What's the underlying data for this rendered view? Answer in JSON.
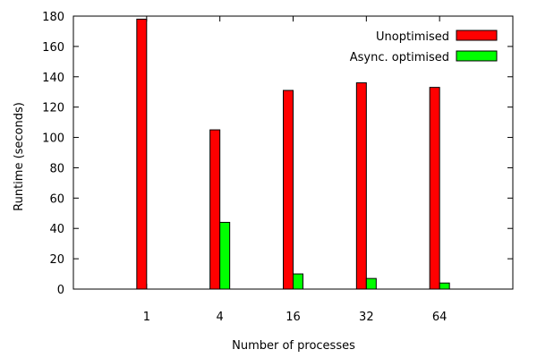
{
  "chart_data": {
    "type": "bar",
    "xlabel": "Number of processes",
    "ylabel": "Runtime (seconds)",
    "categories": [
      "1",
      "4",
      "16",
      "32",
      "64"
    ],
    "ylim": [
      0,
      180
    ],
    "yticks": [
      0,
      20,
      40,
      60,
      80,
      100,
      120,
      140,
      160,
      180
    ],
    "grid": false,
    "legend_position": "top-right",
    "series": [
      {
        "name": "Unoptimised",
        "color": "#ff0000",
        "values": [
          178,
          105,
          131,
          136,
          133
        ]
      },
      {
        "name": "Async. optimised",
        "color": "#00ff00",
        "values": [
          null,
          44,
          10,
          7,
          4
        ]
      }
    ]
  }
}
